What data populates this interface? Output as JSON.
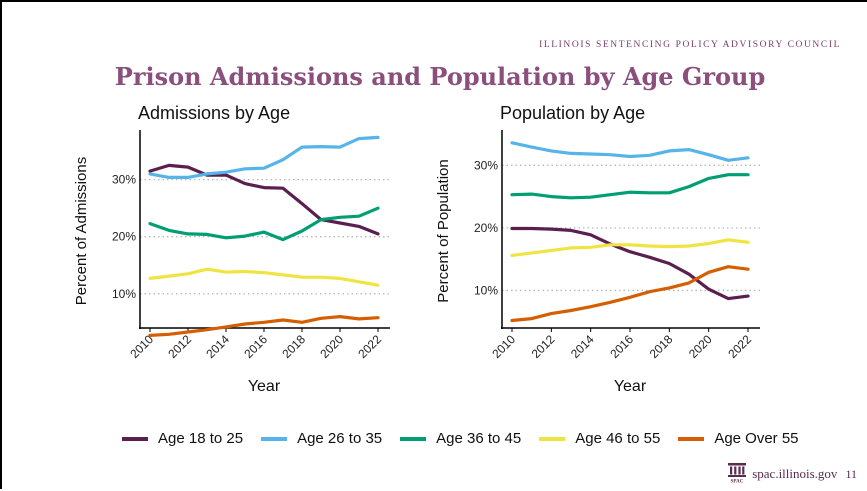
{
  "header": {
    "org": "ILLINOIS SENTENCING POLICY ADVISORY COUNCIL",
    "title": "Prison Admissions and Population by Age Group"
  },
  "footer": {
    "logo_text": "SPAC",
    "url": "spac.illinois.gov",
    "page": "11"
  },
  "colors": {
    "Age 18 to 25": "#5b1f4f",
    "Age 26 to 35": "#56b4e9",
    "Age 36 to 45": "#009e73",
    "Age 46 to 55": "#f0e442",
    "Age Over 55": "#d55e00"
  },
  "chart_data": [
    {
      "type": "line",
      "title": "Admissions by Age",
      "xlabel": "Year",
      "ylabel": "Percent of Admissions",
      "x": [
        2010,
        2011,
        2012,
        2013,
        2014,
        2015,
        2016,
        2017,
        2018,
        2019,
        2020,
        2021,
        2022
      ],
      "xticks": [
        "2010",
        "2012",
        "2014",
        "2016",
        "2018",
        "2020",
        "2022"
      ],
      "yticks": [
        "10%",
        "20%",
        "30%"
      ],
      "ylim": [
        4,
        38
      ],
      "grid": "horizontal dotted",
      "series": [
        {
          "name": "Age 18 to 25",
          "values": [
            31.5,
            32.5,
            32.2,
            30.8,
            30.8,
            29.3,
            28.6,
            28.5,
            25.8,
            23.0,
            22.4,
            21.8,
            20.5
          ]
        },
        {
          "name": "Age 26 to 35",
          "values": [
            31.0,
            30.4,
            30.4,
            31.0,
            31.3,
            31.9,
            32.0,
            33.5,
            35.7,
            35.8,
            35.7,
            37.2,
            37.4
          ]
        },
        {
          "name": "Age 36 to 45",
          "values": [
            22.3,
            21.1,
            20.5,
            20.4,
            19.8,
            20.1,
            20.8,
            19.5,
            21.0,
            23.0,
            23.4,
            23.6,
            25.0
          ]
        },
        {
          "name": "Age 46 to 55",
          "values": [
            12.7,
            13.1,
            13.5,
            14.3,
            13.8,
            13.9,
            13.7,
            13.3,
            12.9,
            12.9,
            12.7,
            12.1,
            11.5
          ]
        },
        {
          "name": "Age Over 55",
          "values": [
            2.7,
            2.9,
            3.3,
            3.7,
            4.2,
            4.7,
            5.0,
            5.4,
            5.0,
            5.7,
            6.0,
            5.6,
            5.8
          ]
        }
      ]
    },
    {
      "type": "line",
      "title": "Population by Age",
      "xlabel": "Year",
      "ylabel": "Percent of Population",
      "x": [
        2010,
        2011,
        2012,
        2013,
        2014,
        2015,
        2016,
        2017,
        2018,
        2019,
        2020,
        2021,
        2022
      ],
      "xticks": [
        "2010",
        "2012",
        "2014",
        "2016",
        "2018",
        "2020",
        "2022"
      ],
      "yticks": [
        "10%",
        "20%",
        "30%"
      ],
      "ylim": [
        4,
        35
      ],
      "grid": "horizontal dotted",
      "series": [
        {
          "name": "Age 18 to 25",
          "values": [
            19.9,
            19.9,
            19.8,
            19.6,
            18.9,
            17.4,
            16.2,
            15.3,
            14.3,
            12.6,
            10.2,
            8.7,
            9.1
          ]
        },
        {
          "name": "Age 26 to 35",
          "values": [
            33.6,
            32.9,
            32.3,
            31.9,
            31.8,
            31.7,
            31.4,
            31.6,
            32.3,
            32.5,
            31.7,
            30.8,
            31.2
          ]
        },
        {
          "name": "Age 36 to 45",
          "values": [
            25.3,
            25.4,
            25.0,
            24.8,
            24.9,
            25.3,
            25.7,
            25.6,
            25.6,
            26.6,
            27.9,
            28.5,
            28.5
          ]
        },
        {
          "name": "Age 46 to 55",
          "values": [
            15.6,
            16.0,
            16.4,
            16.8,
            16.9,
            17.3,
            17.3,
            17.1,
            17.0,
            17.1,
            17.5,
            18.1,
            17.7
          ]
        },
        {
          "name": "Age Over 55",
          "values": [
            5.2,
            5.5,
            6.3,
            6.8,
            7.4,
            8.1,
            8.9,
            9.8,
            10.4,
            11.2,
            12.9,
            13.8,
            13.4
          ]
        }
      ]
    }
  ],
  "legend": [
    {
      "label": "Age 18 to 25",
      "color": "#5b1f4f"
    },
    {
      "label": "Age 26 to 35",
      "color": "#56b4e9"
    },
    {
      "label": "Age 36 to 45",
      "color": "#009e73"
    },
    {
      "label": "Age 46 to 55",
      "color": "#f0e442"
    },
    {
      "label": "Age Over 55",
      "color": "#d55e00"
    }
  ]
}
